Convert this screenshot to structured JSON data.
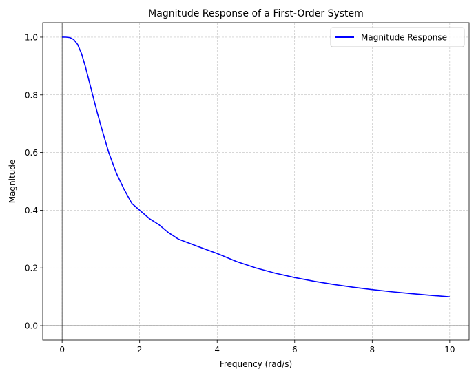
{
  "chart_data": {
    "type": "line",
    "title": "Magnitude Response of a First-Order System",
    "xlabel": "Frequency (rad/s)",
    "ylabel": "Magnitude",
    "xlim": [
      -0.5,
      10.5
    ],
    "ylim": [
      -0.05,
      1.05
    ],
    "xticks": [
      0,
      2,
      4,
      6,
      8,
      10
    ],
    "xtick_labels": [
      "0",
      "2",
      "4",
      "6",
      "8",
      "10"
    ],
    "yticks": [
      0.0,
      0.2,
      0.4,
      0.6,
      0.8,
      1.0
    ],
    "ytick_labels": [
      "0.0",
      "0.2",
      "0.4",
      "0.6",
      "0.8",
      "1.0"
    ],
    "grid": true,
    "grid_style": "dashed",
    "reference_lines": {
      "x": 0,
      "y": 0
    },
    "legend_position": "upper right",
    "series": [
      {
        "name": "Magnitude Response",
        "color": "#0000ff",
        "x": [
          0,
          0.1,
          0.2,
          0.3,
          0.4,
          0.5,
          0.6,
          0.7,
          0.8,
          0.9,
          1.0,
          1.2,
          1.4,
          1.6,
          1.8,
          2.0,
          2.25,
          2.5,
          2.75,
          3.0,
          3.5,
          4.0,
          4.5,
          5.0,
          5.5,
          6.0,
          6.5,
          7.0,
          7.5,
          8.0,
          8.5,
          9.0,
          9.5,
          10.0
        ],
        "y": [
          1.0,
          0.9999,
          0.9984,
          0.9916,
          0.9747,
          0.9432,
          0.8982,
          0.8462,
          0.7937,
          0.7421,
          0.6931,
          0.6014,
          0.5284,
          0.4721,
          0.4233,
          0.4,
          0.3711,
          0.3497,
          0.3217,
          0.3,
          0.2745,
          0.25,
          0.2222,
          0.2,
          0.1818,
          0.1667,
          0.1538,
          0.1429,
          0.1333,
          0.125,
          0.1176,
          0.1111,
          0.1053,
          0.1
        ]
      }
    ]
  }
}
